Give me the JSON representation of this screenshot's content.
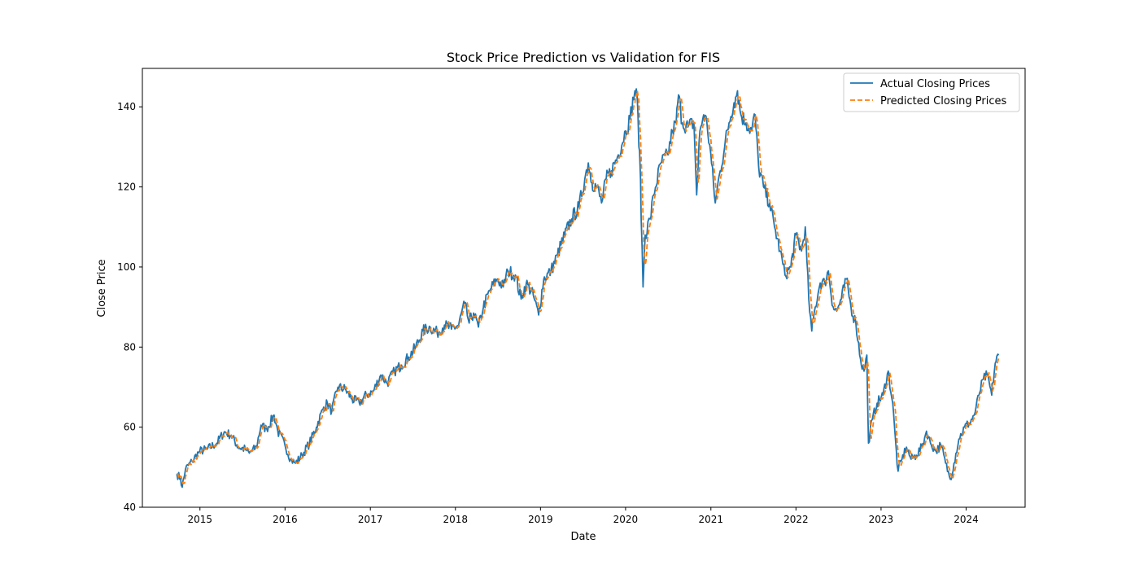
{
  "chart_data": {
    "type": "line",
    "title": "Stock Price Prediction vs Validation for FIS",
    "xlabel": "Date",
    "ylabel": "Close Price",
    "x_range": [
      "2014-04-29",
      "2024-09-10"
    ],
    "ylim": [
      40,
      149.6
    ],
    "x_ticks": [
      "2015",
      "2016",
      "2017",
      "2018",
      "2019",
      "2020",
      "2021",
      "2022",
      "2023",
      "2024"
    ],
    "y_ticks": [
      40,
      60,
      80,
      100,
      120,
      140
    ],
    "grid": false,
    "legend_position": "top-right",
    "series": [
      {
        "name": "Actual Closing Prices",
        "color": "#1f77b4",
        "style": "solid",
        "points": [
          [
            "2014-09-24",
            48.3
          ],
          [
            "2014-10-10",
            47.2
          ],
          [
            "2014-10-17",
            45.0
          ],
          [
            "2014-10-31",
            49.5
          ],
          [
            "2014-11-28",
            51.5
          ],
          [
            "2014-12-31",
            54.0
          ],
          [
            "2015-02-01",
            54.5
          ],
          [
            "2015-03-15",
            56.0
          ],
          [
            "2015-04-15",
            58.8
          ],
          [
            "2015-05-15",
            58.0
          ],
          [
            "2015-06-15",
            55.0
          ],
          [
            "2015-07-15",
            54.5
          ],
          [
            "2015-08-01",
            53.5
          ],
          [
            "2015-09-01",
            55.0
          ],
          [
            "2015-09-20",
            60.5
          ],
          [
            "2015-10-15",
            59.5
          ],
          [
            "2015-11-15",
            63.0
          ],
          [
            "2015-12-01",
            59.0
          ],
          [
            "2016-01-01",
            55.5
          ],
          [
            "2016-01-25",
            52.0
          ],
          [
            "2016-02-15",
            51.0
          ],
          [
            "2016-03-15",
            53.0
          ],
          [
            "2016-04-15",
            56.0
          ],
          [
            "2016-05-15",
            60.0
          ],
          [
            "2016-06-15",
            65.0
          ],
          [
            "2016-07-01",
            66.0
          ],
          [
            "2016-07-20",
            64.0
          ],
          [
            "2016-08-15",
            70.0
          ],
          [
            "2016-09-15",
            69.5
          ],
          [
            "2016-10-15",
            67.0
          ],
          [
            "2016-11-15",
            66.0
          ],
          [
            "2016-12-15",
            68.0
          ],
          [
            "2017-01-15",
            69.0
          ],
          [
            "2017-02-15",
            73.0
          ],
          [
            "2017-03-15",
            71.0
          ],
          [
            "2017-04-15",
            74.0
          ],
          [
            "2017-05-15",
            75.5
          ],
          [
            "2017-06-15",
            77.5
          ],
          [
            "2017-07-15",
            80.0
          ],
          [
            "2017-08-15",
            84.0
          ],
          [
            "2017-09-15",
            85.0
          ],
          [
            "2017-10-15",
            83.5
          ],
          [
            "2017-11-15",
            85.5
          ],
          [
            "2017-12-15",
            84.5
          ],
          [
            "2018-01-15",
            85.5
          ],
          [
            "2018-02-10",
            91.0
          ],
          [
            "2018-03-01",
            86.0
          ],
          [
            "2018-03-20",
            88.5
          ],
          [
            "2018-04-10",
            85.0
          ],
          [
            "2018-05-01",
            90.0
          ],
          [
            "2018-06-01",
            94.5
          ],
          [
            "2018-07-01",
            97.0
          ],
          [
            "2018-07-25",
            95.0
          ],
          [
            "2018-08-15",
            99.0
          ],
          [
            "2018-09-15",
            98.0
          ],
          [
            "2018-10-10",
            92.0
          ],
          [
            "2018-11-01",
            96.0
          ],
          [
            "2018-12-01",
            93.0
          ],
          [
            "2018-12-24",
            88.0
          ],
          [
            "2019-01-15",
            97.0
          ],
          [
            "2019-02-15",
            99.0
          ],
          [
            "2019-03-15",
            103.0
          ],
          [
            "2019-04-15",
            108.0
          ],
          [
            "2019-05-15",
            112.0
          ],
          [
            "2019-06-15",
            115.0
          ],
          [
            "2019-07-10",
            122.0
          ],
          [
            "2019-07-25",
            126.0
          ],
          [
            "2019-08-10",
            121.0
          ],
          [
            "2019-09-01",
            120.0
          ],
          [
            "2019-09-20",
            116.0
          ],
          [
            "2019-10-10",
            122.0
          ],
          [
            "2019-11-01",
            124.0
          ],
          [
            "2019-12-01",
            128.0
          ],
          [
            "2020-01-01",
            134.0
          ],
          [
            "2020-01-20",
            137.0
          ],
          [
            "2020-02-10",
            144.0
          ],
          [
            "2020-02-20",
            142.0
          ],
          [
            "2020-03-05",
            122.0
          ],
          [
            "2020-03-16",
            95.0
          ],
          [
            "2020-03-25",
            108.0
          ],
          [
            "2020-04-15",
            112.0
          ],
          [
            "2020-05-01",
            118.0
          ],
          [
            "2020-06-01",
            126.0
          ],
          [
            "2020-07-01",
            128.0
          ],
          [
            "2020-07-20",
            134.0
          ],
          [
            "2020-08-05",
            136.0
          ],
          [
            "2020-08-15",
            143.0
          ],
          [
            "2020-09-01",
            136.0
          ],
          [
            "2020-09-25",
            135.0
          ],
          [
            "2020-10-20",
            136.0
          ],
          [
            "2020-11-01",
            118.0
          ],
          [
            "2020-11-15",
            134.0
          ],
          [
            "2020-12-01",
            138.0
          ],
          [
            "2020-12-15",
            136.0
          ],
          [
            "2021-01-01",
            128.0
          ],
          [
            "2021-01-20",
            116.0
          ],
          [
            "2021-02-10",
            124.0
          ],
          [
            "2021-03-01",
            130.0
          ],
          [
            "2021-03-20",
            136.0
          ],
          [
            "2021-04-10",
            141.0
          ],
          [
            "2021-04-25",
            144.0
          ],
          [
            "2021-05-10",
            138.0
          ],
          [
            "2021-06-01",
            136.0
          ],
          [
            "2021-06-25",
            134.0
          ],
          [
            "2021-07-10",
            138.0
          ],
          [
            "2021-07-25",
            125.0
          ],
          [
            "2021-08-15",
            120.0
          ],
          [
            "2021-09-10",
            116.0
          ],
          [
            "2021-10-01",
            110.0
          ],
          [
            "2021-10-25",
            104.0
          ],
          [
            "2021-11-15",
            98.0
          ],
          [
            "2021-12-10",
            100.0
          ],
          [
            "2022-01-01",
            108.0
          ],
          [
            "2022-01-25",
            104.0
          ],
          [
            "2022-02-10",
            110.0
          ],
          [
            "2022-02-25",
            92.0
          ],
          [
            "2022-03-10",
            84.0
          ],
          [
            "2022-03-25",
            90.0
          ],
          [
            "2022-04-15",
            96.0
          ],
          [
            "2022-05-05",
            96.0
          ],
          [
            "2022-05-20",
            99.0
          ],
          [
            "2022-06-10",
            90.0
          ],
          [
            "2022-06-25",
            89.0
          ],
          [
            "2022-07-15",
            92.0
          ],
          [
            "2022-08-05",
            97.0
          ],
          [
            "2022-08-25",
            90.0
          ],
          [
            "2022-09-15",
            86.0
          ],
          [
            "2022-10-05",
            77.0
          ],
          [
            "2022-10-20",
            74.0
          ],
          [
            "2022-11-01",
            78.0
          ],
          [
            "2022-11-08",
            56.0
          ],
          [
            "2022-11-25",
            62.0
          ],
          [
            "2022-12-15",
            66.0
          ],
          [
            "2023-01-10",
            68.0
          ],
          [
            "2023-02-01",
            74.0
          ],
          [
            "2023-02-20",
            66.0
          ],
          [
            "2023-03-05",
            56.0
          ],
          [
            "2023-03-15",
            49.0
          ],
          [
            "2023-04-01",
            52.0
          ],
          [
            "2023-04-20",
            55.0
          ],
          [
            "2023-05-10",
            52.0
          ],
          [
            "2023-06-01",
            53.0
          ],
          [
            "2023-06-25",
            55.0
          ],
          [
            "2023-07-15",
            59.0
          ],
          [
            "2023-08-01",
            56.0
          ],
          [
            "2023-08-25",
            54.0
          ],
          [
            "2023-09-15",
            55.5
          ],
          [
            "2023-10-05",
            51.0
          ],
          [
            "2023-10-25",
            47.0
          ],
          [
            "2023-11-10",
            51.0
          ],
          [
            "2023-12-01",
            57.0
          ],
          [
            "2023-12-25",
            60.0
          ],
          [
            "2024-01-15",
            61.0
          ],
          [
            "2024-02-05",
            63.0
          ],
          [
            "2024-02-25",
            68.0
          ],
          [
            "2024-03-15",
            72.0
          ],
          [
            "2024-04-01",
            73.0
          ],
          [
            "2024-04-20",
            68.0
          ],
          [
            "2024-05-05",
            76.0
          ],
          [
            "2024-05-20",
            78.0
          ]
        ]
      },
      {
        "name": "Predicted Closing Prices",
        "color": "#ff7f0e",
        "style": "dashed"
      }
    ]
  }
}
